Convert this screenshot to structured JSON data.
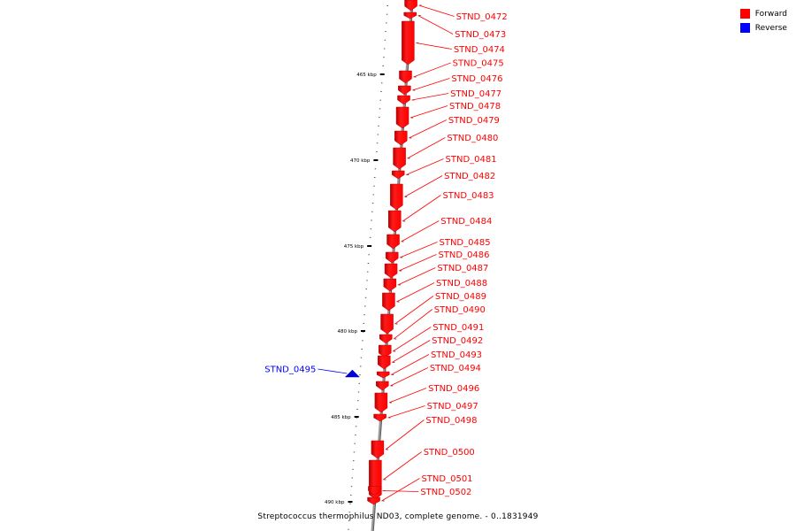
{
  "legend": {
    "forward": {
      "label": "Forward",
      "color": "#ff0000"
    },
    "reverse": {
      "label": "Reverse",
      "color": "#0000ff"
    }
  },
  "caption": "Streptococcus thermophilus ND03, complete genome. - 0..1831949",
  "axis": {
    "ticks": [
      "465 kbp",
      "470 kbp",
      "475 kbp",
      "480 kbp",
      "485 kbp",
      "490 kbp"
    ]
  },
  "genes": [
    {
      "name": "STND_0472",
      "strand": "forward"
    },
    {
      "name": "STND_0473",
      "strand": "forward"
    },
    {
      "name": "STND_0474",
      "strand": "forward"
    },
    {
      "name": "STND_0475",
      "strand": "forward"
    },
    {
      "name": "STND_0476",
      "strand": "forward"
    },
    {
      "name": "STND_0477",
      "strand": "forward"
    },
    {
      "name": "STND_0478",
      "strand": "forward"
    },
    {
      "name": "STND_0479",
      "strand": "forward"
    },
    {
      "name": "STND_0480",
      "strand": "forward"
    },
    {
      "name": "STND_0481",
      "strand": "forward"
    },
    {
      "name": "STND_0482",
      "strand": "forward"
    },
    {
      "name": "STND_0483",
      "strand": "forward"
    },
    {
      "name": "STND_0484",
      "strand": "forward"
    },
    {
      "name": "STND_0485",
      "strand": "forward"
    },
    {
      "name": "STND_0486",
      "strand": "forward"
    },
    {
      "name": "STND_0487",
      "strand": "forward"
    },
    {
      "name": "STND_0488",
      "strand": "forward"
    },
    {
      "name": "STND_0489",
      "strand": "forward"
    },
    {
      "name": "STND_0490",
      "strand": "forward"
    },
    {
      "name": "STND_0491",
      "strand": "forward"
    },
    {
      "name": "STND_0492",
      "strand": "forward"
    },
    {
      "name": "STND_0493",
      "strand": "forward"
    },
    {
      "name": "STND_0494",
      "strand": "forward"
    },
    {
      "name": "STND_0495",
      "strand": "reverse"
    },
    {
      "name": "STND_0496",
      "strand": "forward"
    },
    {
      "name": "STND_0497",
      "strand": "forward"
    },
    {
      "name": "STND_0498",
      "strand": "forward"
    },
    {
      "name": "STND_0500",
      "strand": "forward"
    },
    {
      "name": "STND_0501",
      "strand": "forward"
    },
    {
      "name": "STND_0502",
      "strand": "forward"
    }
  ]
}
